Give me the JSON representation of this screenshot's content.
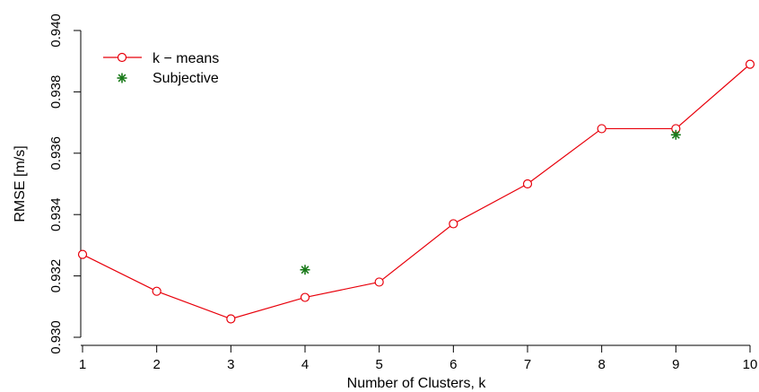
{
  "chart_data": {
    "type": "line",
    "xlabel": "Number of Clusters,  k",
    "ylabel": "RMSE [m/s]",
    "xlim": [
      1,
      10
    ],
    "ylim": [
      0.93,
      0.94
    ],
    "x_ticks": [
      1,
      2,
      3,
      4,
      5,
      6,
      7,
      8,
      9,
      10
    ],
    "y_ticks": [
      "0.930",
      "0.932",
      "0.934",
      "0.936",
      "0.938",
      "0.940"
    ],
    "grid": false,
    "legend_position": "top-left",
    "series": [
      {
        "name": "k − means",
        "color": "#e8000b",
        "marker": "circle",
        "style": "line",
        "x": [
          1,
          2,
          3,
          4,
          5,
          6,
          7,
          8,
          9,
          10
        ],
        "y": [
          0.9327,
          0.9315,
          0.9306,
          0.9313,
          0.9318,
          0.9337,
          0.935,
          0.9368,
          0.9368,
          0.9389
        ]
      },
      {
        "name": "Subjective",
        "color": "#1a7a1a",
        "marker": "asterisk",
        "style": "none",
        "x": [
          4,
          9
        ],
        "y": [
          0.9322,
          0.9366
        ]
      }
    ]
  }
}
